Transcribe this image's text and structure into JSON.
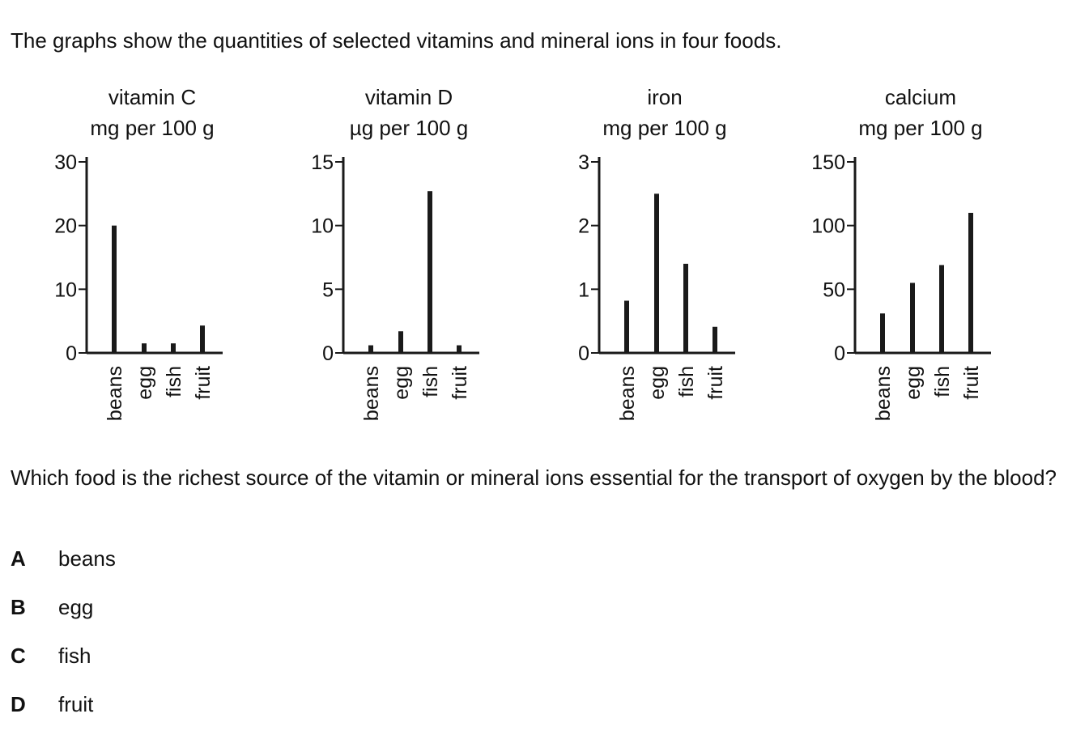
{
  "intro": "The graphs show the quantities of selected vitamins and mineral ions in four foods.",
  "chart_data": [
    {
      "type": "bar",
      "title": "vitamin C",
      "unit": "mg per 100 g",
      "categories": [
        "beans",
        "egg",
        "fish",
        "fruit"
      ],
      "values": [
        20,
        1.5,
        1.5,
        4.3
      ],
      "yticks": [
        0,
        10,
        20,
        30
      ],
      "ylim": [
        0,
        30
      ],
      "grid": false
    },
    {
      "type": "bar",
      "title": "vitamin D",
      "unit": "µg per 100 g",
      "categories": [
        "beans",
        "egg",
        "fish",
        "fruit"
      ],
      "values": [
        0.6,
        1.7,
        12.7,
        0.6
      ],
      "yticks": [
        0,
        5,
        10,
        15
      ],
      "ylim": [
        0,
        15
      ],
      "grid": false
    },
    {
      "type": "bar",
      "title": "iron",
      "unit": "mg per 100 g",
      "categories": [
        "beans",
        "egg",
        "fish",
        "fruit"
      ],
      "values": [
        0.82,
        2.5,
        1.4,
        0.41
      ],
      "yticks": [
        0,
        1,
        2,
        3
      ],
      "ylim": [
        0,
        3
      ],
      "grid": false
    },
    {
      "type": "bar",
      "title": "calcium",
      "unit": "mg per 100 g",
      "categories": [
        "beans",
        "egg",
        "fish",
        "fruit"
      ],
      "values": [
        31,
        55,
        69,
        110
      ],
      "yticks": [
        0,
        50,
        100,
        150
      ],
      "ylim": [
        0,
        150
      ],
      "grid": false
    }
  ],
  "question": "Which food is the richest source of the vitamin or mineral ions essential for the transport of oxygen by the blood?",
  "options": [
    {
      "letter": "A",
      "text": "beans"
    },
    {
      "letter": "B",
      "text": "egg"
    },
    {
      "letter": "C",
      "text": "fish"
    },
    {
      "letter": "D",
      "text": "fruit"
    }
  ]
}
